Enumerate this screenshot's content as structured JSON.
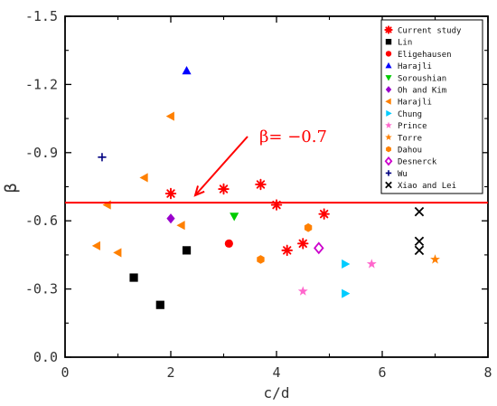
{
  "chart_data": {
    "type": "scatter",
    "title": "",
    "xlabel": "c/d",
    "ylabel": "β",
    "xlim": [
      0,
      8
    ],
    "ylim": [
      0,
      -1.5
    ],
    "xticks": [
      "0",
      "2",
      "4",
      "6",
      "8"
    ],
    "yticks": [
      "0.0",
      "-0.3",
      "-0.6",
      "-0.9",
      "-1.2",
      "-1.5"
    ],
    "legend_position": "top-right",
    "reference_line": {
      "y": -0.68,
      "color": "#ff0000",
      "label": "β= −0.7"
    },
    "series": [
      {
        "name": "Current study",
        "marker": "asterisk",
        "color": "#ff0000",
        "points": [
          [
            2.0,
            -0.72
          ],
          [
            3.0,
            -0.74
          ],
          [
            3.7,
            -0.76
          ],
          [
            4.0,
            -0.67
          ],
          [
            4.2,
            -0.47
          ],
          [
            4.5,
            -0.5
          ],
          [
            4.9,
            -0.63
          ]
        ]
      },
      {
        "name": "Lin",
        "marker": "square",
        "color": "#000000",
        "points": [
          [
            1.3,
            -0.35
          ],
          [
            1.8,
            -0.23
          ],
          [
            2.3,
            -0.47
          ]
        ]
      },
      {
        "name": "Eligehausen",
        "marker": "circle",
        "color": "#ff0000",
        "points": [
          [
            3.1,
            -0.5
          ]
        ]
      },
      {
        "name": "Harajli",
        "marker": "triangle-up",
        "color": "#0000ff",
        "points": [
          [
            2.3,
            -1.26
          ]
        ]
      },
      {
        "name": "Soroushian",
        "marker": "triangle-down",
        "color": "#00cc00",
        "points": [
          [
            3.2,
            -0.62
          ]
        ]
      },
      {
        "name": "Oh and Kim",
        "marker": "diamond",
        "color": "#9900cc",
        "points": [
          [
            2.0,
            -0.61
          ]
        ]
      },
      {
        "name": "Harajli",
        "marker": "triangle-left",
        "color": "#ff8000",
        "points": [
          [
            0.6,
            -0.49
          ],
          [
            0.8,
            -0.67
          ],
          [
            1.0,
            -0.46
          ],
          [
            1.5,
            -0.79
          ],
          [
            2.0,
            -1.06
          ],
          [
            2.2,
            -0.58
          ]
        ]
      },
      {
        "name": "Chung",
        "marker": "triangle-right",
        "color": "#00ccff",
        "points": [
          [
            5.3,
            -0.41
          ],
          [
            5.3,
            -0.28
          ]
        ]
      },
      {
        "name": "Prince",
        "marker": "star",
        "color": "#ff66cc",
        "points": [
          [
            4.5,
            -0.29
          ],
          [
            5.8,
            -0.41
          ]
        ]
      },
      {
        "name": "Torre",
        "marker": "star",
        "color": "#ff8000",
        "points": [
          [
            7.0,
            -0.43
          ]
        ]
      },
      {
        "name": "Dahou",
        "marker": "hexagon",
        "color": "#ff8000",
        "points": [
          [
            3.7,
            -0.43
          ],
          [
            4.6,
            -0.57
          ]
        ]
      },
      {
        "name": "Desnerck",
        "marker": "diamond-open",
        "color": "#cc00cc",
        "points": [
          [
            4.8,
            -0.48
          ]
        ]
      },
      {
        "name": "Wu",
        "marker": "plus",
        "color": "#000080",
        "points": [
          [
            0.7,
            -0.88
          ]
        ]
      },
      {
        "name": "Xiao and Lei",
        "marker": "x",
        "color": "#000000",
        "points": [
          [
            6.7,
            -0.64
          ],
          [
            6.7,
            -0.51
          ],
          [
            6.7,
            -0.47
          ]
        ]
      }
    ]
  }
}
